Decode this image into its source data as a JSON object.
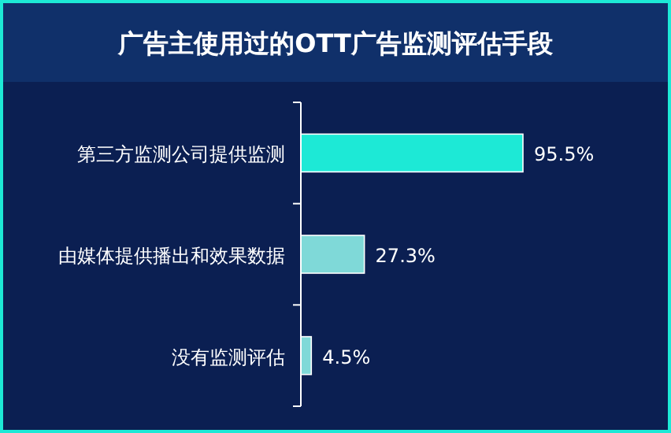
{
  "chart_data": {
    "type": "bar",
    "orientation": "horizontal",
    "title": "广告主使用过的OTT广告监测评估手段",
    "categories": [
      "第三方监测公司提供监测",
      "由媒体提供播出和效果数据",
      "没有监测评估"
    ],
    "values": [
      95.5,
      27.3,
      4.5
    ],
    "colors": [
      "#1de9d6",
      "#7fd9d8",
      "#7fd9d8"
    ],
    "value_labels": [
      "95.5%",
      "27.3%",
      "4.5%"
    ]
  }
}
